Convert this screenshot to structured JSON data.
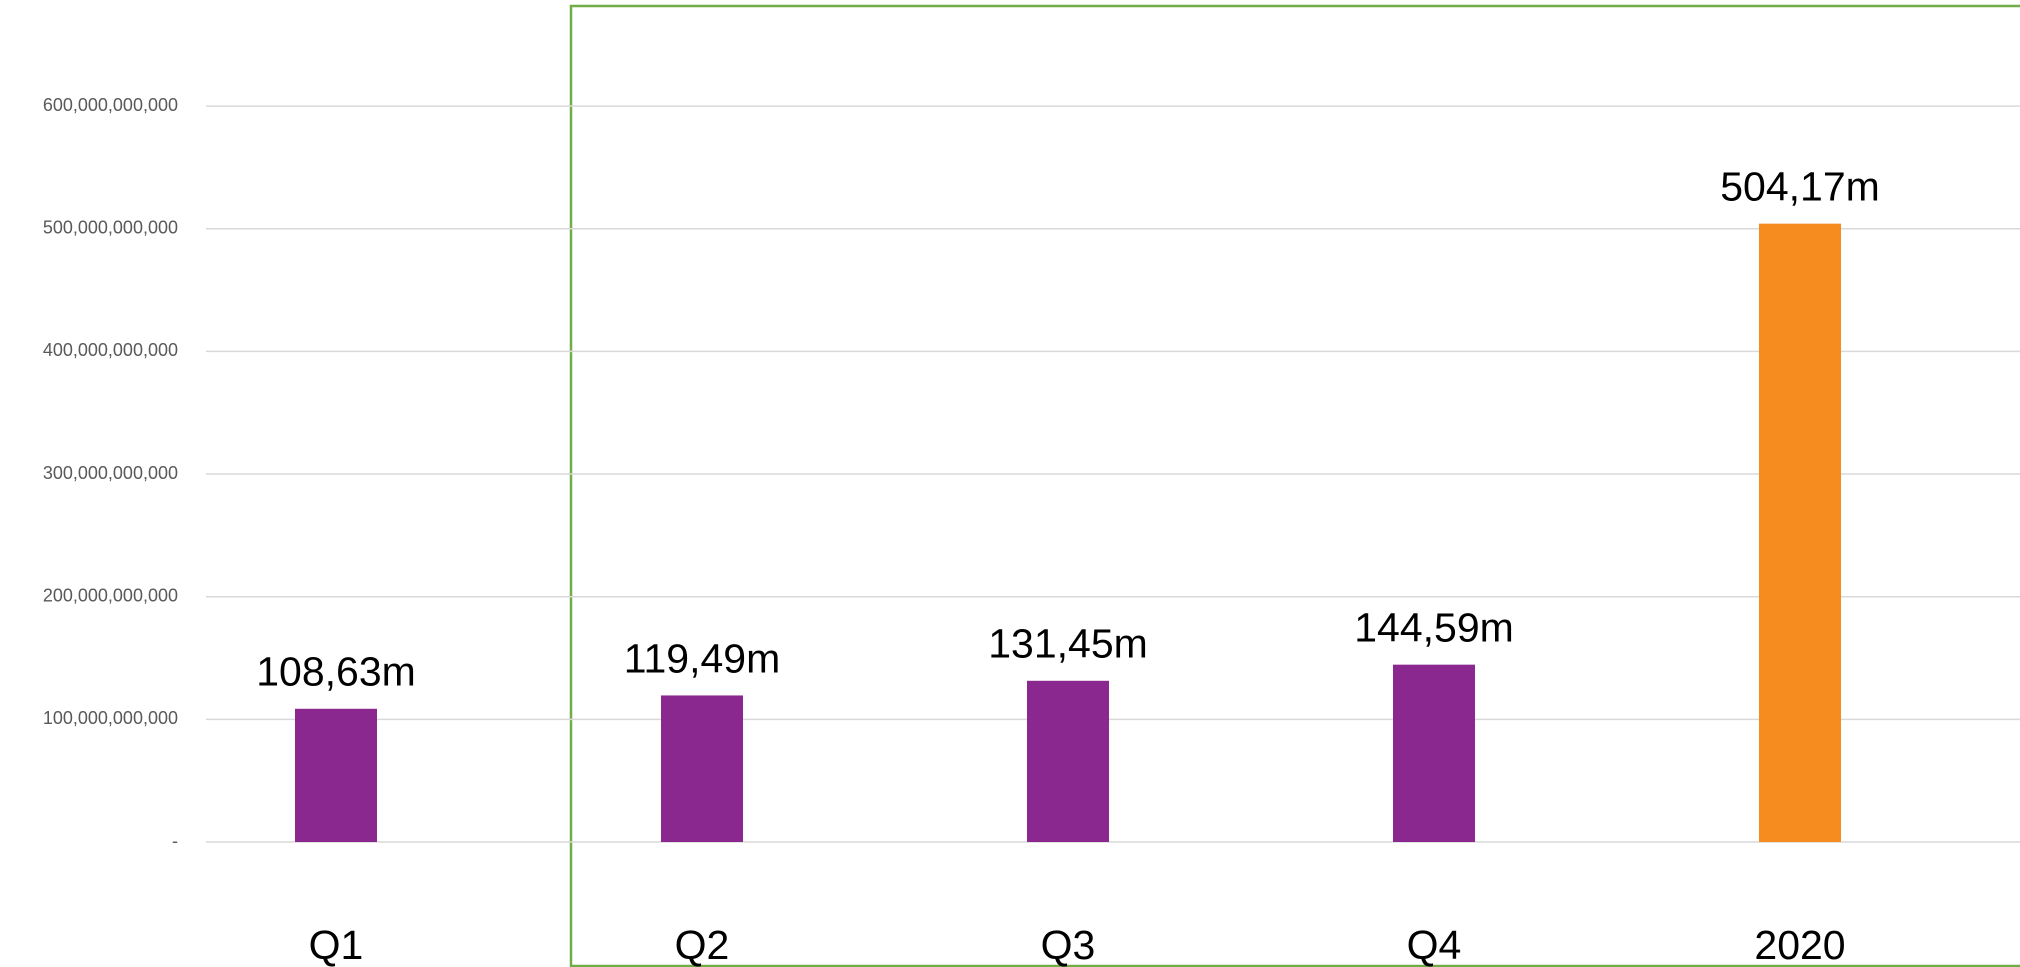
{
  "chart_data": {
    "type": "bar",
    "categories": [
      "Q1",
      "Q2",
      "Q3",
      "Q4",
      "2020"
    ],
    "values": [
      108630000000,
      119490000000,
      131450000000,
      144590000000,
      504170000000
    ],
    "value_labels": [
      "108,63m",
      "119,49m",
      "131,45m",
      "144,59m",
      "504,17m"
    ],
    "colors": [
      "#8b288f",
      "#8b288f",
      "#8b288f",
      "#8b288f",
      "#f68b1f"
    ],
    "ylim": [
      0,
      680000000000
    ],
    "yticks": [
      {
        "value": 0,
        "label": "-"
      },
      {
        "value": 100000000000,
        "label": "100,000,000,000"
      },
      {
        "value": 200000000000,
        "label": "200,000,000,000"
      },
      {
        "value": 300000000000,
        "label": "300,000,000,000"
      },
      {
        "value": 400000000000,
        "label": "400,000,000,000"
      },
      {
        "value": 500000000000,
        "label": "500,000,000,000"
      },
      {
        "value": 600000000000,
        "label": "600,000,000,000"
      }
    ],
    "grid": true
  }
}
